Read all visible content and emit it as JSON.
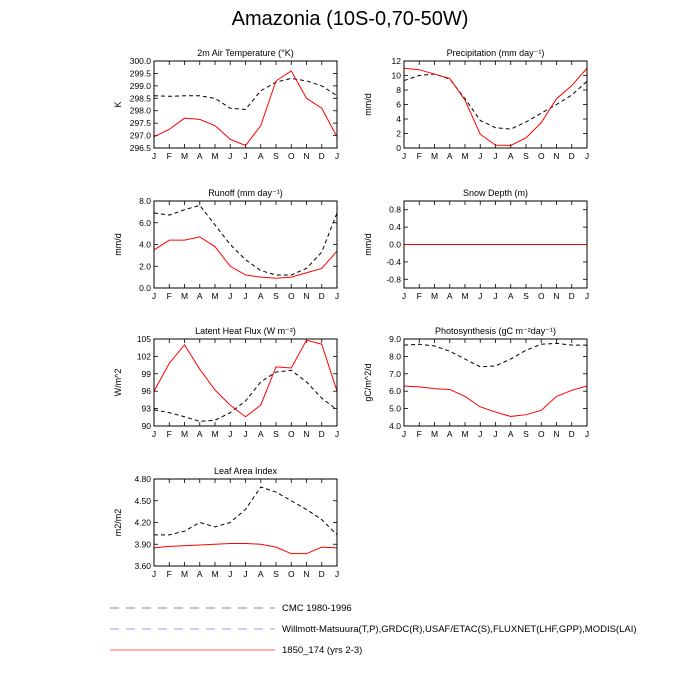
{
  "title": "Amazonia (10S-0,70-50W)",
  "months": [
    "J",
    "F",
    "M",
    "A",
    "M",
    "J",
    "J",
    "A",
    "S",
    "O",
    "N",
    "D",
    "J"
  ],
  "colors": {
    "cmc": "#000000",
    "obs": "#0000ff",
    "model": "#ff0000"
  },
  "legend": [
    {
      "label": "CMC 1980-1996",
      "color": "#000000",
      "style": "dashed"
    },
    {
      "label": "Willmott-Matsuura(T,P),GRDC(R),USAF/ETAC(S),FLUXNET(LHF,GPP),MODIS(LAI)",
      "color": "#0000ff",
      "style": "dashed"
    },
    {
      "label": "1850_174 (yrs 2-3)",
      "color": "#ff0000",
      "style": "solid"
    }
  ],
  "chart_data": [
    {
      "type": "line",
      "title": "2m Air Temperature (°K)",
      "ylabel": "K",
      "ylim": [
        296.5,
        300.0
      ],
      "yticks": [
        "296.5",
        "297.0",
        "297.5",
        "298.0",
        "298.5",
        "299.0",
        "299.5",
        "300.0"
      ],
      "series": [
        {
          "name": "CMC 1980-1996",
          "values": [
            298.6,
            298.58,
            298.6,
            298.6,
            298.5,
            298.1,
            298.05,
            298.8,
            299.15,
            299.3,
            299.2,
            299.0,
            298.6
          ]
        },
        {
          "name": "1850_174 (yrs 2-3)",
          "values": [
            296.95,
            297.25,
            297.7,
            297.65,
            297.4,
            296.85,
            296.6,
            297.4,
            299.2,
            299.6,
            298.5,
            298.1,
            296.95
          ]
        }
      ]
    },
    {
      "type": "line",
      "title": "Precipitation (mm day⁻¹)",
      "ylabel": "mm/d",
      "ylim": [
        0,
        12
      ],
      "yticks": [
        "0",
        "2",
        "4",
        "6",
        "8",
        "10",
        "12"
      ],
      "series": [
        {
          "name": "CMC 1980-1996",
          "values": [
            9.3,
            10.0,
            10.2,
            9.5,
            6.8,
            3.8,
            2.8,
            2.6,
            3.6,
            4.8,
            6.0,
            7.3,
            9.2
          ]
        },
        {
          "name": "1850_174 (yrs 2-3)",
          "values": [
            11.0,
            10.8,
            10.2,
            9.6,
            6.6,
            1.9,
            0.4,
            0.35,
            1.4,
            3.5,
            6.8,
            8.6,
            11.0
          ]
        }
      ]
    },
    {
      "type": "line",
      "title": "Runoff (mm day⁻¹)",
      "ylabel": "mm/d",
      "ylim": [
        0,
        8
      ],
      "yticks": [
        "0.0",
        "2.0",
        "4.0",
        "6.0",
        "8.0"
      ],
      "series": [
        {
          "name": "CMC 1980-1996",
          "values": [
            6.9,
            6.7,
            7.2,
            7.6,
            5.8,
            4.0,
            2.6,
            1.6,
            1.2,
            1.2,
            1.8,
            3.3,
            6.9
          ]
        },
        {
          "name": "1850_174 (yrs 2-3)",
          "values": [
            3.5,
            4.4,
            4.4,
            4.7,
            3.8,
            2.0,
            1.2,
            1.0,
            0.9,
            1.0,
            1.4,
            1.8,
            3.4
          ]
        }
      ]
    },
    {
      "type": "line",
      "title": "Snow Depth (m)",
      "ylabel": "mm/d",
      "ylim": [
        -1.0,
        1.0
      ],
      "yticks": [
        "-0.8",
        "-0.4",
        "0.0",
        "0.4",
        "0.8"
      ],
      "ytickvals": [
        -0.8,
        -0.4,
        0.0,
        0.4,
        0.8
      ],
      "series": [
        {
          "name": "CMC 1980-1996",
          "values": [
            0,
            0,
            0,
            0,
            0,
            0,
            0,
            0,
            0,
            0,
            0,
            0,
            0
          ]
        },
        {
          "name": "1850_174 (yrs 2-3)",
          "values": [
            0,
            0,
            0,
            0,
            0,
            0,
            0,
            0,
            0,
            0,
            0,
            0,
            0
          ]
        }
      ]
    },
    {
      "type": "line",
      "title": "Latent Heat Flux (W m⁻²)",
      "ylabel": "W/m^2",
      "ylim": [
        90,
        105
      ],
      "yticks": [
        "90",
        "93",
        "96",
        "99",
        "102",
        "105"
      ],
      "series": [
        {
          "name": "CMC 1980-1996",
          "values": [
            92.8,
            92.3,
            91.6,
            90.8,
            91.0,
            92.3,
            94.3,
            97.6,
            99.3,
            99.6,
            97.6,
            94.8,
            92.8
          ]
        },
        {
          "name": "1850_174 (yrs 2-3)",
          "values": [
            96.0,
            100.8,
            104.0,
            99.8,
            96.2,
            93.6,
            91.6,
            93.6,
            100.2,
            100.0,
            104.8,
            104.1,
            96.0
          ]
        }
      ]
    },
    {
      "type": "line",
      "title": "Photosynthesis (gC m⁻²day⁻¹)",
      "ylabel": "gC/m^2/d",
      "ylim": [
        4.0,
        9.0
      ],
      "yticks": [
        "4.0",
        "5.0",
        "6.0",
        "7.0",
        "8.0",
        "9.0"
      ],
      "series": [
        {
          "name": "CMC 1980-1996",
          "values": [
            8.65,
            8.7,
            8.6,
            8.3,
            7.85,
            7.4,
            7.45,
            7.85,
            8.35,
            8.7,
            8.75,
            8.65,
            8.65
          ]
        },
        {
          "name": "1850_174 (yrs 2-3)",
          "values": [
            6.3,
            6.25,
            6.15,
            6.1,
            5.7,
            5.1,
            4.8,
            4.55,
            4.65,
            4.9,
            5.7,
            6.05,
            6.3
          ]
        }
      ]
    },
    {
      "type": "line",
      "title": "Leaf Area Index",
      "ylabel": "m2/m2",
      "ylim": [
        3.6,
        4.8
      ],
      "yticks": [
        "3.60",
        "3.90",
        "4.20",
        "4.50",
        "4.80"
      ],
      "series": [
        {
          "name": "CMC 1980-1996",
          "values": [
            4.03,
            4.03,
            4.08,
            4.2,
            4.14,
            4.2,
            4.38,
            4.69,
            4.62,
            4.5,
            4.38,
            4.24,
            4.03
          ]
        },
        {
          "name": "1850_174 (yrs 2-3)",
          "values": [
            3.85,
            3.87,
            3.88,
            3.89,
            3.9,
            3.91,
            3.91,
            3.9,
            3.86,
            3.77,
            3.77,
            3.86,
            3.85
          ]
        }
      ]
    }
  ]
}
